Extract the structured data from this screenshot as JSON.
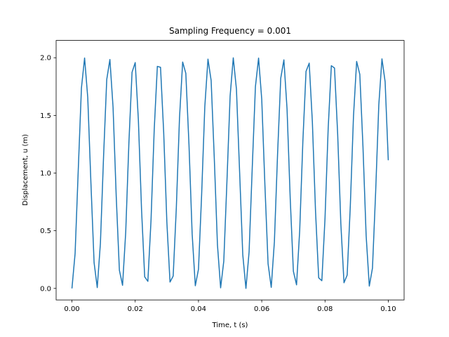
{
  "chart_data": {
    "type": "line",
    "title": "Sampling Frequency = 0.001",
    "xlabel": "Time, t (s)",
    "ylabel": "Displacement, u (m)",
    "color": "#1f77b4",
    "x": [
      0,
      0.001,
      0.002,
      0.003,
      0.004,
      0.005,
      0.006,
      0.007,
      0.008,
      0.009,
      0.01,
      0.011,
      0.012,
      0.013,
      0.014,
      0.015,
      0.016,
      0.017,
      0.018,
      0.019,
      0.02,
      0.021,
      0.022,
      0.023,
      0.024,
      0.025,
      0.026,
      0.027,
      0.028,
      0.029,
      0.03,
      0.031,
      0.032,
      0.033,
      0.034,
      0.035,
      0.036,
      0.037,
      0.038,
      0.039,
      0.04,
      0.041,
      0.042,
      0.043,
      0.044,
      0.045,
      0.046,
      0.047,
      0.048,
      0.049,
      0.05,
      0.051,
      0.052,
      0.053,
      0.054,
      0.055,
      0.056,
      0.057,
      0.058,
      0.059,
      0.06,
      0.061,
      0.062,
      0.063,
      0.064,
      0.065,
      0.066,
      0.067,
      0.068,
      0.069,
      0.07,
      0.071,
      0.072,
      0.073,
      0.074,
      0.075,
      0.076,
      0.077,
      0.078,
      0.079,
      0.08,
      0.081,
      0.082,
      0.083,
      0.084,
      0.085,
      0.086,
      0.087,
      0.088,
      0.089,
      0.09,
      0.091,
      0.092,
      0.093,
      0.094,
      0.095,
      0.096,
      0.097,
      0.098,
      0.099,
      0.1
    ],
    "values": [
      0,
      0.303,
      1.029,
      1.737,
      1.998,
      1.654,
      0.913,
      0.224,
      0.007,
      0.392,
      1.146,
      1.811,
      1.985,
      1.57,
      0.797,
      0.157,
      0.027,
      0.488,
      1.26,
      1.874,
      1.958,
      1.46,
      0.685,
      0.1,
      0.061,
      0.591,
      1.371,
      1.925,
      1.917,
      1.355,
      0.577,
      0.055,
      0.107,
      0.701,
      1.477,
      1.963,
      1.865,
      1.245,
      0.473,
      0.023,
      0.166,
      0.814,
      1.576,
      1.988,
      1.803,
      1.128,
      0.377,
      0.005,
      0.236,
      0.93,
      1.667,
      1.999,
      1.727,
      1.012,
      0.293,
      0.0,
      0.316,
      1.047,
      1.749,
      1.997,
      1.639,
      0.895,
      0.214,
      0.009,
      0.406,
      1.163,
      1.822,
      1.982,
      1.555,
      0.78,
      0.148,
      0.031,
      0.503,
      1.277,
      1.882,
      1.953,
      1.444,
      0.669,
      0.092,
      0.067,
      0.607,
      1.387,
      1.931,
      1.911,
      1.338,
      0.562,
      0.049,
      0.115,
      0.718,
      1.492,
      1.968,
      1.856,
      1.228,
      0.458,
      0.02,
      0.176,
      0.832,
      1.59,
      1.99,
      1.792,
      1.111
    ],
    "xlim": [
      -0.005,
      0.105
    ],
    "ylim": [
      -0.1,
      2.15
    ],
    "xticks": [
      {
        "value": 0,
        "label": "0.00"
      },
      {
        "value": 0.02,
        "label": "0.02"
      },
      {
        "value": 0.04,
        "label": "0.04"
      },
      {
        "value": 0.06,
        "label": "0.06"
      },
      {
        "value": 0.08,
        "label": "0.08"
      },
      {
        "value": 0.1,
        "label": "0.10"
      }
    ],
    "yticks": [
      {
        "value": 0,
        "label": "0.0"
      },
      {
        "value": 0.5,
        "label": "0.5"
      },
      {
        "value": 1,
        "label": "1.0"
      },
      {
        "value": 1.5,
        "label": "1.5"
      },
      {
        "value": 2,
        "label": "2.0"
      }
    ]
  }
}
